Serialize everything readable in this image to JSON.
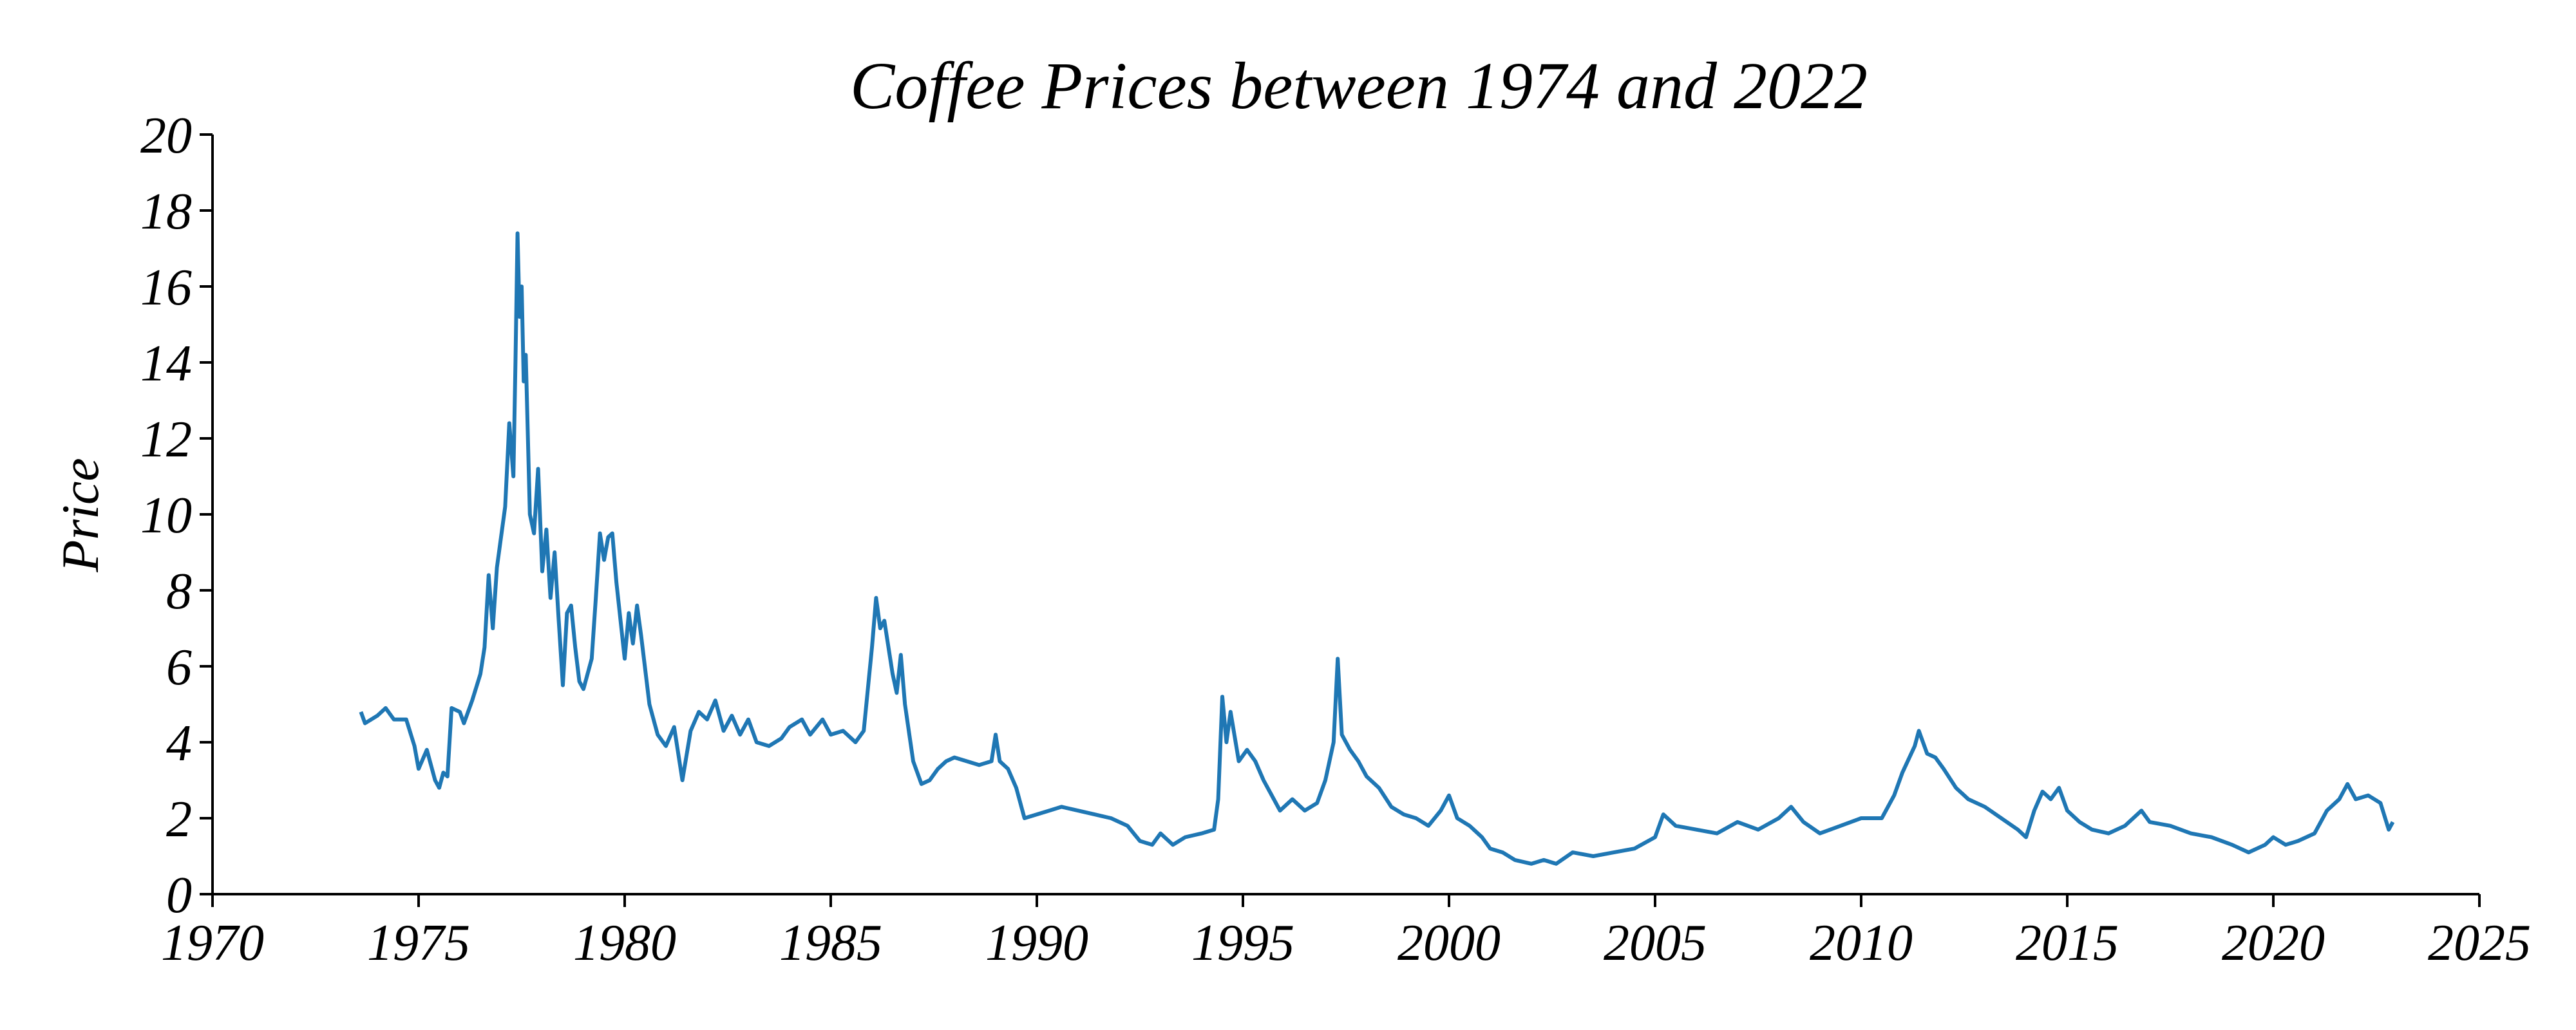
{
  "chart_data": {
    "type": "line",
    "title": "Coffee Prices between 1974 and 2022",
    "y_label": "Price",
    "color": "#1f77b4",
    "xlim": [
      1970,
      2025
    ],
    "xticks": [
      1970,
      1975,
      1980,
      1985,
      1990,
      1995,
      2000,
      2005,
      2010,
      2015,
      2020,
      2025
    ],
    "ylim": [
      0,
      20
    ],
    "yticks": [
      0,
      2,
      4,
      6,
      8,
      10,
      12,
      14,
      16,
      18,
      20
    ],
    "x": [
      1973.6,
      1973.7,
      1974.0,
      1974.2,
      1974.4,
      1974.7,
      1974.9,
      1975.0,
      1975.2,
      1975.4,
      1975.5,
      1975.6,
      1975.7,
      1975.8,
      1976.0,
      1976.1,
      1976.3,
      1976.5,
      1976.6,
      1976.7,
      1976.8,
      1976.9,
      1977.0,
      1977.1,
      1977.2,
      1977.3,
      1977.35,
      1977.4,
      1977.45,
      1977.5,
      1977.55,
      1977.6,
      1977.7,
      1977.8,
      1977.9,
      1978.0,
      1978.1,
      1978.2,
      1978.3,
      1978.4,
      1978.5,
      1978.6,
      1978.7,
      1978.8,
      1978.9,
      1979.0,
      1979.2,
      1979.3,
      1979.4,
      1979.5,
      1979.6,
      1979.7,
      1979.8,
      1980.0,
      1980.1,
      1980.2,
      1980.3,
      1980.4,
      1980.6,
      1980.8,
      1981.0,
      1981.2,
      1981.4,
      1981.6,
      1981.8,
      1982.0,
      1982.2,
      1982.4,
      1982.6,
      1982.8,
      1983.0,
      1983.2,
      1983.5,
      1983.8,
      1984.0,
      1984.3,
      1984.5,
      1984.8,
      1985.0,
      1985.3,
      1985.6,
      1985.8,
      1986.0,
      1986.1,
      1986.2,
      1986.3,
      1986.5,
      1986.6,
      1986.7,
      1986.8,
      1987.0,
      1987.2,
      1987.4,
      1987.6,
      1987.8,
      1988.0,
      1988.3,
      1988.6,
      1988.9,
      1989.0,
      1989.1,
      1989.3,
      1989.5,
      1989.7,
      1990.0,
      1990.3,
      1990.6,
      1991.0,
      1991.4,
      1991.8,
      1992.2,
      1992.5,
      1992.8,
      1993.0,
      1993.3,
      1993.6,
      1994.0,
      1994.3,
      1994.4,
      1994.5,
      1994.6,
      1994.7,
      1994.9,
      1995.1,
      1995.3,
      1995.5,
      1995.7,
      1995.9,
      1996.2,
      1996.5,
      1996.8,
      1997.0,
      1997.2,
      1997.3,
      1997.4,
      1997.6,
      1997.8,
      1998.0,
      1998.3,
      1998.6,
      1998.9,
      1999.2,
      1999.5,
      1999.8,
      2000.0,
      2000.2,
      2000.5,
      2000.8,
      2001.0,
      2001.3,
      2001.6,
      2002.0,
      2002.3,
      2002.6,
      2003.0,
      2003.5,
      2004.0,
      2004.5,
      2005.0,
      2005.2,
      2005.5,
      2006.0,
      2006.5,
      2007.0,
      2007.5,
      2008.0,
      2008.3,
      2008.6,
      2009.0,
      2009.5,
      2010.0,
      2010.5,
      2010.8,
      2011.0,
      2011.3,
      2011.4,
      2011.6,
      2011.8,
      2012.0,
      2012.3,
      2012.6,
      2013.0,
      2013.4,
      2013.8,
      2014.0,
      2014.2,
      2014.4,
      2014.6,
      2014.8,
      2015.0,
      2015.3,
      2015.6,
      2016.0,
      2016.4,
      2016.8,
      2017.0,
      2017.5,
      2018.0,
      2018.5,
      2019.0,
      2019.4,
      2019.8,
      2020.0,
      2020.3,
      2020.6,
      2021.0,
      2021.3,
      2021.6,
      2021.8,
      2022.0,
      2022.3,
      2022.6,
      2022.8,
      2022.9
    ],
    "values": [
      4.8,
      4.5,
      4.7,
      4.9,
      4.6,
      4.6,
      3.9,
      3.3,
      3.8,
      3.0,
      2.8,
      3.2,
      3.1,
      4.9,
      4.8,
      4.5,
      5.1,
      5.8,
      6.5,
      8.4,
      7.0,
      8.6,
      9.4,
      10.2,
      12.4,
      11.0,
      14.0,
      17.4,
      15.2,
      16.0,
      13.5,
      14.2,
      10.0,
      9.5,
      11.2,
      8.5,
      9.6,
      7.8,
      9.0,
      7.2,
      5.5,
      7.4,
      7.6,
      6.5,
      5.6,
      5.4,
      6.2,
      7.8,
      9.5,
      8.8,
      9.4,
      9.5,
      8.2,
      6.2,
      7.4,
      6.6,
      7.6,
      6.8,
      5.0,
      4.2,
      3.9,
      4.4,
      3.0,
      4.3,
      4.8,
      4.6,
      5.1,
      4.3,
      4.7,
      4.2,
      4.6,
      4.0,
      3.9,
      4.1,
      4.4,
      4.6,
      4.2,
      4.6,
      4.2,
      4.3,
      4.0,
      4.3,
      6.5,
      7.8,
      7.0,
      7.2,
      5.8,
      5.3,
      6.3,
      5.0,
      3.5,
      2.9,
      3.0,
      3.3,
      3.5,
      3.6,
      3.5,
      3.4,
      3.5,
      4.2,
      3.5,
      3.3,
      2.8,
      2.0,
      2.1,
      2.2,
      2.3,
      2.2,
      2.1,
      2.0,
      1.8,
      1.4,
      1.3,
      1.6,
      1.3,
      1.5,
      1.6,
      1.7,
      2.5,
      5.2,
      4.0,
      4.8,
      3.5,
      3.8,
      3.5,
      3.0,
      2.6,
      2.2,
      2.5,
      2.2,
      2.4,
      3.0,
      4.0,
      6.2,
      4.2,
      3.8,
      3.5,
      3.1,
      2.8,
      2.3,
      2.1,
      2.0,
      1.8,
      2.2,
      2.6,
      2.0,
      1.8,
      1.5,
      1.2,
      1.1,
      0.9,
      0.8,
      0.9,
      0.8,
      1.1,
      1.0,
      1.1,
      1.2,
      1.5,
      2.1,
      1.8,
      1.7,
      1.6,
      1.9,
      1.7,
      2.0,
      2.3,
      1.9,
      1.6,
      1.8,
      2.0,
      2.0,
      2.6,
      3.2,
      3.9,
      4.3,
      3.7,
      3.6,
      3.3,
      2.8,
      2.5,
      2.3,
      2.0,
      1.7,
      1.5,
      2.2,
      2.7,
      2.5,
      2.8,
      2.2,
      1.9,
      1.7,
      1.6,
      1.8,
      2.2,
      1.9,
      1.8,
      1.6,
      1.5,
      1.3,
      1.1,
      1.3,
      1.5,
      1.3,
      1.4,
      1.6,
      2.2,
      2.5,
      2.9,
      2.5,
      2.6,
      2.4,
      1.7,
      1.9
    ]
  }
}
